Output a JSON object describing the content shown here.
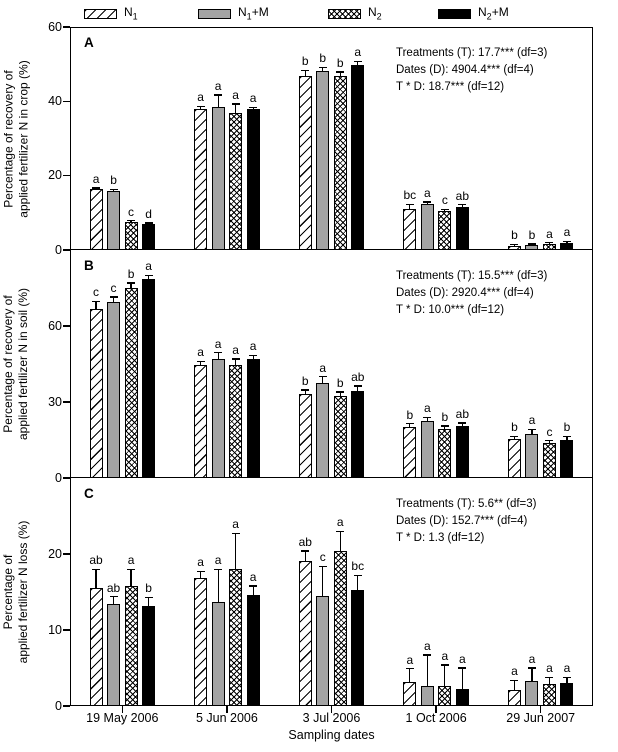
{
  "legend": {
    "items": [
      {
        "base": "N",
        "sub": "1",
        "suffix": "",
        "pattern": "hatch"
      },
      {
        "base": "N",
        "sub": "1",
        "suffix": "+M",
        "pattern": "gray"
      },
      {
        "base": "N",
        "sub": "2",
        "suffix": "",
        "pattern": "cross"
      },
      {
        "base": "N",
        "sub": "2",
        "suffix": "+M",
        "pattern": "black"
      }
    ]
  },
  "colors": {
    "bar_gray": "#a3a3a3",
    "bar_black": "#000000",
    "hatch_line": "#000000",
    "axis": "#000000",
    "background": "#ffffff"
  },
  "xaxis": {
    "title": "Sampling dates",
    "categories": [
      "19 May 2006",
      "5 Jun 2006",
      "3 Jul 2006",
      "1 Oct 2006",
      "29 Jun 2007"
    ]
  },
  "chart_data": [
    {
      "type": "bar",
      "panel": "A",
      "ylabel_lines": [
        "Percentage of recovery of",
        "applied fertilizer N in crop (%)"
      ],
      "ylim": [
        0,
        60
      ],
      "yticks": [
        0,
        20,
        40,
        60
      ],
      "legend_position": "top",
      "grid": false,
      "stats_lines": [
        "Treatments (T): 17.7*** (df=3)",
        "Dates (D): 4904.4*** (df=4)",
        "T * D: 18.7*** (df=12)"
      ],
      "series": [
        {
          "name": "N1",
          "pattern": "hatch",
          "values": [
            16.3,
            37.9,
            46.8,
            11.0,
            1.2
          ],
          "errors": [
            0.4,
            0.8,
            1.6,
            1.3,
            0.3
          ],
          "letters": [
            "a",
            "a",
            "b",
            "bc",
            "b"
          ]
        },
        {
          "name": "N1+M",
          "pattern": "gray",
          "values": [
            15.9,
            38.5,
            48.2,
            12.4,
            1.3
          ],
          "errors": [
            0.4,
            3.2,
            1.0,
            0.5,
            0.3
          ],
          "letters": [
            "b",
            "a",
            "b",
            "a",
            "b"
          ]
        },
        {
          "name": "N2",
          "pattern": "cross",
          "values": [
            7.6,
            36.9,
            46.8,
            10.5,
            1.7
          ],
          "errors": [
            0.3,
            2.4,
            1.1,
            0.5,
            0.3
          ],
          "letters": [
            "c",
            "a",
            "b",
            "c",
            "a"
          ]
        },
        {
          "name": "N2+M",
          "pattern": "black",
          "values": [
            7.0,
            37.9,
            49.8,
            11.6,
            2.0
          ],
          "errors": [
            0.3,
            0.5,
            1.0,
            0.6,
            0.3
          ],
          "letters": [
            "d",
            "a",
            "a",
            "ab",
            "a"
          ]
        }
      ]
    },
    {
      "type": "bar",
      "panel": "B",
      "ylabel_lines": [
        "Percentage of recovery of",
        "applied fertilizer N in soil (%)"
      ],
      "ylim": [
        0,
        90
      ],
      "yticks": [
        0,
        30,
        60
      ],
      "grid": false,
      "stats_lines": [
        "Treatments (T): 15.5*** (df=3)",
        "Dates (D): 2920.4*** (df=4)",
        "T * D: 10.0*** (df=12)"
      ],
      "series": [
        {
          "name": "N1",
          "pattern": "hatch",
          "values": [
            66.7,
            44.5,
            33.2,
            20.0,
            15.5
          ],
          "errors": [
            3.0,
            1.5,
            1.6,
            1.5,
            1.0
          ],
          "letters": [
            "c",
            "a",
            "b",
            "b",
            "b"
          ]
        },
        {
          "name": "N1+M",
          "pattern": "gray",
          "values": [
            69.5,
            47.0,
            37.5,
            22.5,
            17.5
          ],
          "errors": [
            2.0,
            2.5,
            2.5,
            1.5,
            1.8
          ],
          "letters": [
            "c",
            "a",
            "a",
            "a",
            "a"
          ]
        },
        {
          "name": "N2",
          "pattern": "cross",
          "values": [
            75.0,
            44.5,
            32.5,
            19.5,
            13.8
          ],
          "errors": [
            2.0,
            2.5,
            1.5,
            1.0,
            1.0
          ],
          "letters": [
            "b",
            "a",
            "b",
            "b",
            "c"
          ]
        },
        {
          "name": "N2+M",
          "pattern": "black",
          "values": [
            78.5,
            47.0,
            34.5,
            20.5,
            15.0
          ],
          "errors": [
            1.5,
            1.5,
            1.8,
            1.2,
            1.5
          ],
          "letters": [
            "a",
            "a",
            "ab",
            "ab",
            "b"
          ]
        }
      ]
    },
    {
      "type": "bar",
      "panel": "C",
      "ylabel_lines": [
        "Percentage of",
        "applied fertilizer N loss (%)"
      ],
      "ylim": [
        0,
        30
      ],
      "yticks": [
        0,
        10,
        20
      ],
      "grid": false,
      "stats_lines": [
        "Treatments (T): 5.6** (df=3)",
        "Dates (D): 152.7*** (df=4)",
        "T * D: 1.3 (df=12)"
      ],
      "series": [
        {
          "name": "N1",
          "pattern": "hatch",
          "values": [
            15.5,
            16.8,
            19.1,
            3.2,
            2.1
          ],
          "errors": [
            2.5,
            0.9,
            1.3,
            1.7,
            1.3
          ],
          "letters": [
            "ab",
            "a",
            "ab",
            "a",
            "a"
          ]
        },
        {
          "name": "N1+M",
          "pattern": "gray",
          "values": [
            13.4,
            13.7,
            14.5,
            2.6,
            3.3
          ],
          "errors": [
            1.0,
            4.3,
            3.9,
            4.1,
            1.7
          ],
          "letters": [
            "ab",
            "a",
            "c",
            "a",
            "a"
          ]
        },
        {
          "name": "N2",
          "pattern": "cross",
          "values": [
            15.8,
            18.0,
            20.4,
            2.6,
            2.9
          ],
          "errors": [
            2.2,
            4.7,
            2.6,
            2.8,
            0.9
          ],
          "letters": [
            "a",
            "a",
            "a",
            "a",
            "a"
          ]
        },
        {
          "name": "N2+M",
          "pattern": "black",
          "values": [
            13.2,
            14.6,
            15.3,
            2.2,
            3.0
          ],
          "errors": [
            1.1,
            1.2,
            1.9,
            2.8,
            0.8
          ],
          "letters": [
            "b",
            "a",
            "bc",
            "a",
            "a"
          ]
        }
      ]
    }
  ]
}
